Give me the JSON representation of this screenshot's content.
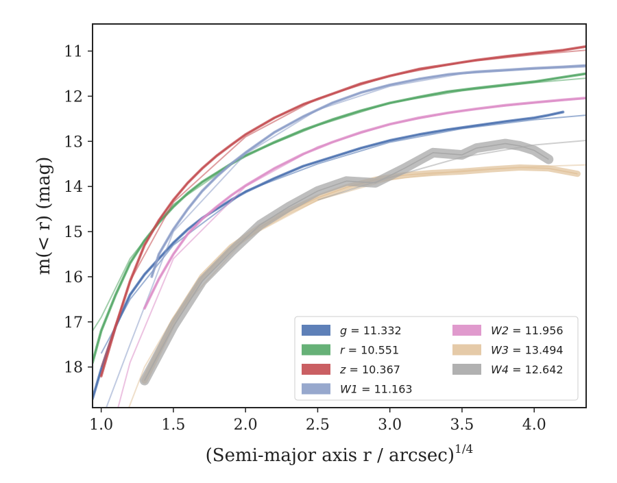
{
  "chart_data": {
    "type": "line",
    "title": "",
    "xlabel": "(Semi-major axis r / arcsec)",
    "xlabel_superscript": "1/4",
    "ylabel": "m(< r) (mag)",
    "xlim": [
      0.94,
      4.36
    ],
    "ylim": [
      18.9,
      10.4
    ],
    "y_inverted": true,
    "grid": false,
    "legend_position": "lower-right",
    "x_ticks": [
      "1.0",
      "1.5",
      "2.0",
      "2.5",
      "3.0",
      "3.5",
      "4.0"
    ],
    "x_tick_values": [
      1.0,
      1.5,
      2.0,
      2.5,
      3.0,
      3.5,
      4.0
    ],
    "y_ticks": [
      "11",
      "12",
      "13",
      "14",
      "15",
      "16",
      "17",
      "18"
    ],
    "y_tick_values": [
      11,
      12,
      13,
      14,
      15,
      16,
      17,
      18
    ],
    "series": [
      {
        "name": "g = 11.332",
        "label_band": "g",
        "label_value": "= 11.332",
        "color": "#4c72b0",
        "style": "band",
        "points": [
          [
            0.94,
            18.7
          ],
          [
            1.0,
            18.05
          ],
          [
            1.1,
            17.1
          ],
          [
            1.2,
            16.4
          ],
          [
            1.3,
            15.95
          ],
          [
            1.4,
            15.6
          ],
          [
            1.5,
            15.25
          ],
          [
            1.6,
            14.95
          ],
          [
            1.7,
            14.7
          ],
          [
            1.8,
            14.5
          ],
          [
            1.9,
            14.3
          ],
          [
            2.0,
            14.12
          ],
          [
            2.2,
            13.82
          ],
          [
            2.4,
            13.55
          ],
          [
            2.6,
            13.35
          ],
          [
            2.8,
            13.15
          ],
          [
            3.0,
            12.98
          ],
          [
            3.2,
            12.85
          ],
          [
            3.4,
            12.74
          ],
          [
            3.6,
            12.65
          ],
          [
            3.8,
            12.56
          ],
          [
            4.0,
            12.48
          ],
          [
            4.1,
            12.42
          ],
          [
            4.2,
            12.35
          ]
        ],
        "fit": [
          [
            1.0,
            17.7
          ],
          [
            1.2,
            16.5
          ],
          [
            1.5,
            15.3
          ],
          [
            2.0,
            14.1
          ],
          [
            2.5,
            13.5
          ],
          [
            3.0,
            13.02
          ],
          [
            3.5,
            12.72
          ],
          [
            4.0,
            12.52
          ],
          [
            4.36,
            12.42
          ]
        ]
      },
      {
        "name": "r = 10.551",
        "label_band": "r",
        "label_value": "= 10.551",
        "color": "#55a868",
        "style": "band",
        "points": [
          [
            0.94,
            17.9
          ],
          [
            1.0,
            17.2
          ],
          [
            1.1,
            16.4
          ],
          [
            1.2,
            15.7
          ],
          [
            1.3,
            15.2
          ],
          [
            1.4,
            14.8
          ],
          [
            1.5,
            14.45
          ],
          [
            1.6,
            14.15
          ],
          [
            1.7,
            13.9
          ],
          [
            1.8,
            13.7
          ],
          [
            1.9,
            13.5
          ],
          [
            2.0,
            13.32
          ],
          [
            2.2,
            13.02
          ],
          [
            2.4,
            12.75
          ],
          [
            2.6,
            12.52
          ],
          [
            2.8,
            12.32
          ],
          [
            3.0,
            12.15
          ],
          [
            3.2,
            12.02
          ],
          [
            3.4,
            11.9
          ],
          [
            3.6,
            11.82
          ],
          [
            3.8,
            11.75
          ],
          [
            4.0,
            11.68
          ],
          [
            4.2,
            11.58
          ],
          [
            4.36,
            11.5
          ]
        ],
        "fit": [
          [
            0.94,
            17.2
          ],
          [
            1.0,
            16.9
          ],
          [
            1.2,
            15.6
          ],
          [
            1.5,
            14.4
          ],
          [
            2.0,
            13.3
          ],
          [
            2.5,
            12.65
          ],
          [
            3.0,
            12.15
          ],
          [
            3.5,
            11.88
          ],
          [
            4.0,
            11.7
          ],
          [
            4.36,
            11.6
          ]
        ]
      },
      {
        "name": "z = 10.367",
        "label_band": "z",
        "label_value": "= 10.367",
        "color": "#c44e52",
        "style": "band",
        "points": [
          [
            1.0,
            18.2
          ],
          [
            1.1,
            17.1
          ],
          [
            1.2,
            16.1
          ],
          [
            1.3,
            15.3
          ],
          [
            1.4,
            14.75
          ],
          [
            1.5,
            14.3
          ],
          [
            1.6,
            13.92
          ],
          [
            1.7,
            13.6
          ],
          [
            1.8,
            13.32
          ],
          [
            1.9,
            13.08
          ],
          [
            2.0,
            12.85
          ],
          [
            2.2,
            12.48
          ],
          [
            2.4,
            12.18
          ],
          [
            2.6,
            11.95
          ],
          [
            2.8,
            11.72
          ],
          [
            3.0,
            11.55
          ],
          [
            3.2,
            11.4
          ],
          [
            3.4,
            11.3
          ],
          [
            3.6,
            11.2
          ],
          [
            3.8,
            11.12
          ],
          [
            4.0,
            11.05
          ],
          [
            4.2,
            10.98
          ],
          [
            4.36,
            10.9
          ]
        ],
        "fit": [
          [
            1.0,
            18.0
          ],
          [
            1.2,
            16.1
          ],
          [
            1.5,
            14.35
          ],
          [
            2.0,
            12.9
          ],
          [
            2.5,
            12.05
          ],
          [
            3.0,
            11.55
          ],
          [
            3.5,
            11.25
          ],
          [
            4.0,
            11.08
          ],
          [
            4.36,
            10.98
          ]
        ]
      },
      {
        "name": "W1 = 11.163",
        "label_band": "W1",
        "label_value": "= 11.163",
        "color": "#8c9ec8",
        "style": "band",
        "points": [
          [
            1.35,
            16.0
          ],
          [
            1.4,
            15.5
          ],
          [
            1.5,
            14.95
          ],
          [
            1.6,
            14.5
          ],
          [
            1.7,
            14.1
          ],
          [
            1.8,
            13.78
          ],
          [
            1.9,
            13.5
          ],
          [
            2.0,
            13.25
          ],
          [
            2.2,
            12.8
          ],
          [
            2.4,
            12.45
          ],
          [
            2.6,
            12.15
          ],
          [
            2.8,
            11.92
          ],
          [
            3.0,
            11.75
          ],
          [
            3.2,
            11.62
          ],
          [
            3.4,
            11.52
          ],
          [
            3.6,
            11.46
          ],
          [
            3.8,
            11.42
          ],
          [
            4.0,
            11.38
          ],
          [
            4.2,
            11.35
          ],
          [
            4.36,
            11.32
          ]
        ],
        "fit": [
          [
            1.0,
            19.2
          ],
          [
            1.2,
            17.5
          ],
          [
            1.5,
            15.0
          ],
          [
            2.0,
            13.28
          ],
          [
            2.5,
            12.3
          ],
          [
            3.0,
            11.78
          ],
          [
            3.5,
            11.5
          ],
          [
            4.0,
            11.4
          ],
          [
            4.36,
            11.35
          ]
        ]
      },
      {
        "name": "W2 = 11.956",
        "label_band": "W2",
        "label_value": "= 11.956",
        "color": "#dd8fc8",
        "style": "band",
        "points": [
          [
            1.3,
            16.7
          ],
          [
            1.4,
            16.05
          ],
          [
            1.5,
            15.5
          ],
          [
            1.6,
            15.05
          ],
          [
            1.7,
            14.72
          ],
          [
            1.8,
            14.45
          ],
          [
            1.9,
            14.2
          ],
          [
            2.0,
            13.98
          ],
          [
            2.2,
            13.6
          ],
          [
            2.4,
            13.28
          ],
          [
            2.6,
            13.02
          ],
          [
            2.8,
            12.8
          ],
          [
            3.0,
            12.62
          ],
          [
            3.2,
            12.48
          ],
          [
            3.4,
            12.37
          ],
          [
            3.6,
            12.28
          ],
          [
            3.8,
            12.2
          ],
          [
            4.0,
            12.14
          ],
          [
            4.2,
            12.08
          ],
          [
            4.36,
            12.04
          ]
        ],
        "fit": [
          [
            1.1,
            19.1
          ],
          [
            1.2,
            17.9
          ],
          [
            1.5,
            15.6
          ],
          [
            2.0,
            14.0
          ],
          [
            2.5,
            13.12
          ],
          [
            3.0,
            12.62
          ],
          [
            3.5,
            12.32
          ],
          [
            4.0,
            12.15
          ],
          [
            4.36,
            12.05
          ]
        ]
      },
      {
        "name": "W3 = 13.494",
        "label_band": "W3",
        "label_value": "= 13.494",
        "color": "#e2c49e",
        "style": "band",
        "points": [
          [
            1.3,
            18.3
          ],
          [
            1.5,
            17.0
          ],
          [
            1.7,
            16.0
          ],
          [
            1.9,
            15.35
          ],
          [
            2.1,
            14.9
          ],
          [
            2.3,
            14.55
          ],
          [
            2.5,
            14.25
          ],
          [
            2.7,
            14.02
          ],
          [
            2.9,
            13.85
          ],
          [
            3.1,
            13.75
          ],
          [
            3.3,
            13.7
          ],
          [
            3.5,
            13.67
          ],
          [
            3.7,
            13.62
          ],
          [
            3.9,
            13.58
          ],
          [
            4.1,
            13.6
          ],
          [
            4.3,
            13.72
          ]
        ],
        "fit": [
          [
            1.18,
            19.0
          ],
          [
            1.3,
            18.0
          ],
          [
            1.5,
            16.9
          ],
          [
            2.0,
            15.15
          ],
          [
            2.5,
            14.3
          ],
          [
            3.0,
            13.85
          ],
          [
            3.5,
            13.65
          ],
          [
            4.0,
            13.56
          ],
          [
            4.36,
            13.52
          ]
        ]
      },
      {
        "name": "W4 = 12.642",
        "label_band": "W4",
        "label_value": "= 12.642",
        "color": "#a8a8a8",
        "style": "band",
        "points": [
          [
            1.3,
            18.3
          ],
          [
            1.5,
            17.1
          ],
          [
            1.7,
            16.1
          ],
          [
            1.9,
            15.45
          ],
          [
            2.1,
            14.85
          ],
          [
            2.3,
            14.45
          ],
          [
            2.5,
            14.1
          ],
          [
            2.7,
            13.88
          ],
          [
            2.9,
            13.92
          ],
          [
            3.1,
            13.6
          ],
          [
            3.3,
            13.25
          ],
          [
            3.5,
            13.3
          ],
          [
            3.6,
            13.15
          ],
          [
            3.7,
            13.1
          ],
          [
            3.8,
            13.05
          ],
          [
            3.9,
            13.1
          ],
          [
            4.0,
            13.2
          ],
          [
            4.1,
            13.4
          ]
        ],
        "fit": [
          [
            2.5,
            14.3
          ],
          [
            3.0,
            13.8
          ],
          [
            3.5,
            13.35
          ],
          [
            4.0,
            13.08
          ],
          [
            4.36,
            12.98
          ]
        ]
      }
    ]
  }
}
